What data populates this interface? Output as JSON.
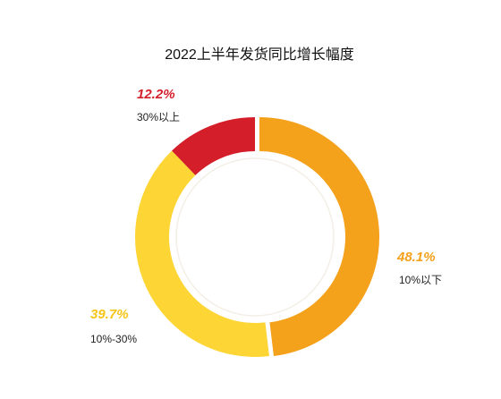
{
  "chart_data": {
    "type": "donut",
    "title": "2022上半年发货同比增长幅度",
    "categories": [
      "10%以下",
      "10%-30%",
      "30%以上"
    ],
    "values": [
      48.1,
      39.7,
      12.2
    ],
    "value_labels": [
      "48.1%",
      "39.7%",
      "12.2%"
    ],
    "colors": [
      "#f4a11c",
      "#fdd535",
      "#d41f2b"
    ]
  }
}
